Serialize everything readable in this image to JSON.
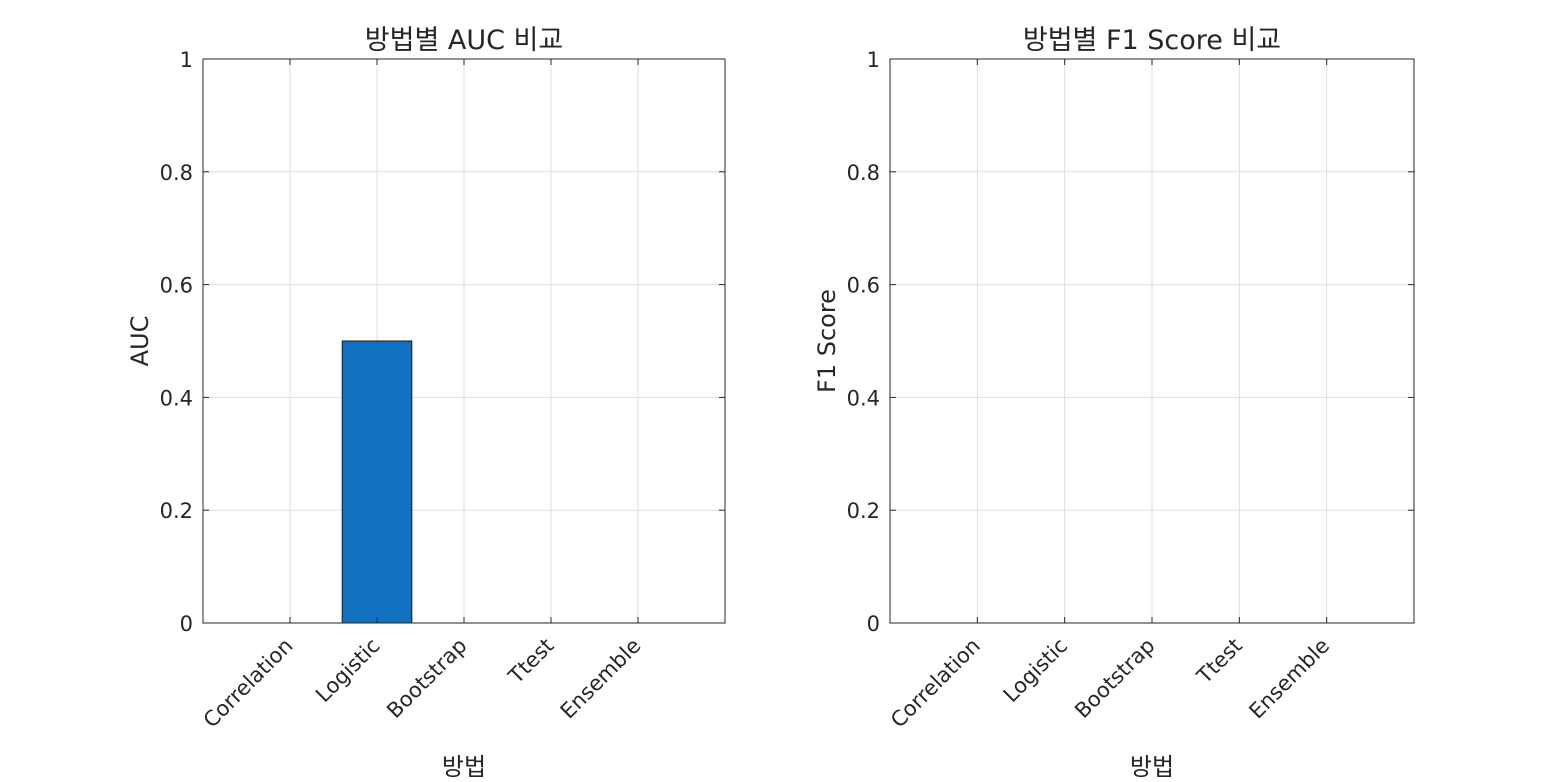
{
  "chart_data": [
    {
      "type": "bar",
      "title": "방법별 AUC 비교",
      "xlabel": "방법",
      "ylabel": "AUC",
      "categories": [
        "Correlation",
        "Logistic",
        "Bootstrap",
        "Ttest",
        "Ensemble"
      ],
      "values": [
        0,
        0.5,
        0,
        0,
        0
      ],
      "ylim": [
        0,
        1
      ],
      "yticks": [
        "0",
        "0.2",
        "0.4",
        "0.6",
        "0.8",
        "1"
      ],
      "grid": true,
      "bar_color": "#1170bf"
    },
    {
      "type": "bar",
      "title": "방법별 F1 Score 비교",
      "xlabel": "방법",
      "ylabel": "F1 Score",
      "categories": [
        "Correlation",
        "Logistic",
        "Bootstrap",
        "Ttest",
        "Ensemble"
      ],
      "values": [
        0,
        0,
        0,
        0,
        0
      ],
      "ylim": [
        0,
        1
      ],
      "yticks": [
        "0",
        "0.2",
        "0.4",
        "0.6",
        "0.8",
        "1"
      ],
      "grid": true,
      "bar_color": "#1170bf"
    }
  ]
}
